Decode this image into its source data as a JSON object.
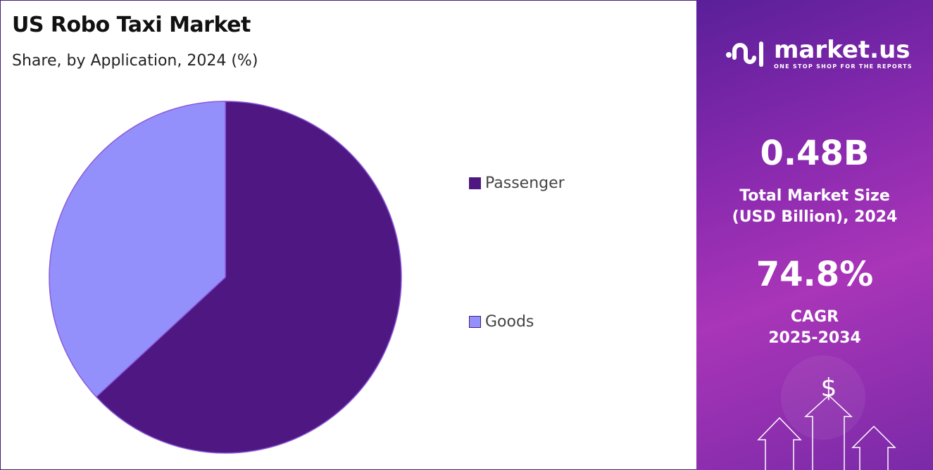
{
  "header": {
    "title": "US Robo Taxi Market",
    "subtitle": "Share, by Application, 2024 (%)"
  },
  "chart_data": {
    "type": "pie",
    "title": "US Robo Taxi Market",
    "subtitle": "Share, by Application, 2024 (%)",
    "categories": [
      "Passenger",
      "Goods"
    ],
    "values": [
      63.1,
      36.9
    ],
    "colors": [
      "#4e1782",
      "#9490fb"
    ],
    "start_angle": "12 o'clock, clockwise",
    "legend_position": "right",
    "data_labels": false
  },
  "panel": {
    "brand": "market.us",
    "tagline": "ONE STOP SHOP FOR THE REPORTS",
    "market_size": "0.48B",
    "market_size_label_1": "Total Market Size",
    "market_size_label_2": "(USD Billion), 2024",
    "cagr": "74.8%",
    "cagr_label_1": "CAGR",
    "cagr_label_2": "2025-2034",
    "dollar_symbol": "$"
  }
}
